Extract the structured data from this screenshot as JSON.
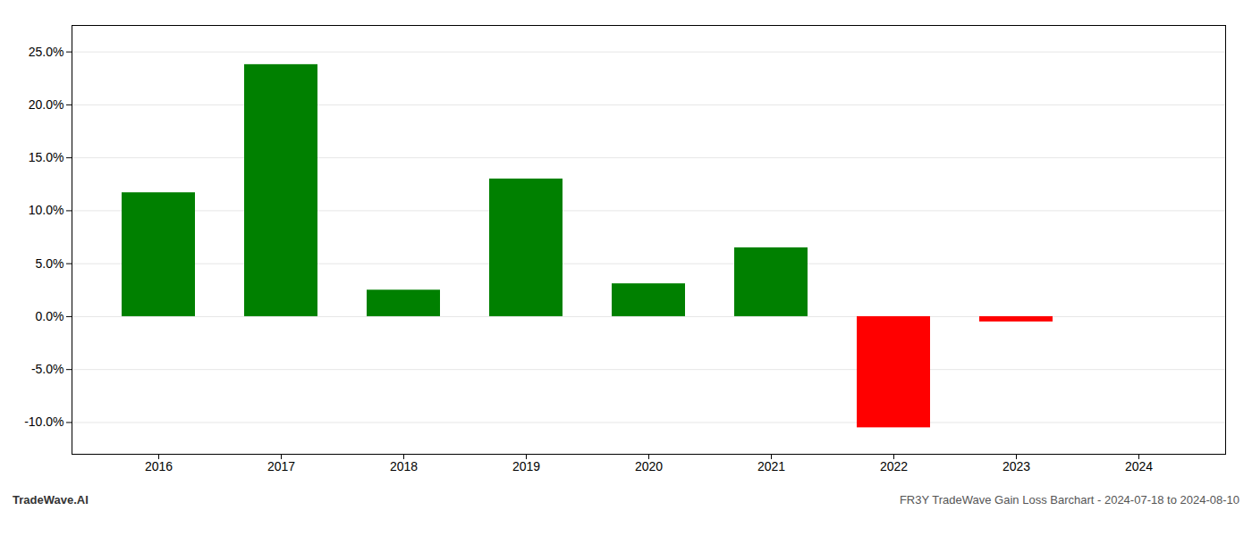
{
  "chart_data": {
    "type": "bar",
    "categories": [
      "2016",
      "2017",
      "2018",
      "2019",
      "2020",
      "2021",
      "2022",
      "2023",
      "2024"
    ],
    "values": [
      0.117,
      0.238,
      0.025,
      0.13,
      0.031,
      0.065,
      -0.105,
      -0.005,
      0.0
    ],
    "colors": [
      "#008000",
      "#008000",
      "#008000",
      "#008000",
      "#008000",
      "#008000",
      "#ff0000",
      "#ff0000",
      "#008000"
    ],
    "ylim": [
      -0.13,
      0.275
    ],
    "yticks": [
      {
        "value": -0.1,
        "label": "-10.0%"
      },
      {
        "value": -0.05,
        "label": "-5.0%"
      },
      {
        "value": 0.0,
        "label": "0.0%"
      },
      {
        "value": 0.05,
        "label": "5.0%"
      },
      {
        "value": 0.1,
        "label": "10.0%"
      },
      {
        "value": 0.15,
        "label": "15.0%"
      },
      {
        "value": 0.2,
        "label": "20.0%"
      },
      {
        "value": 0.25,
        "label": "25.0%"
      }
    ],
    "grid": true,
    "annotations": [
      "TradeWave.AI",
      "FR3Y TradeWave Gain Loss Barchart - 2024-07-18 to 2024-08-10"
    ]
  }
}
